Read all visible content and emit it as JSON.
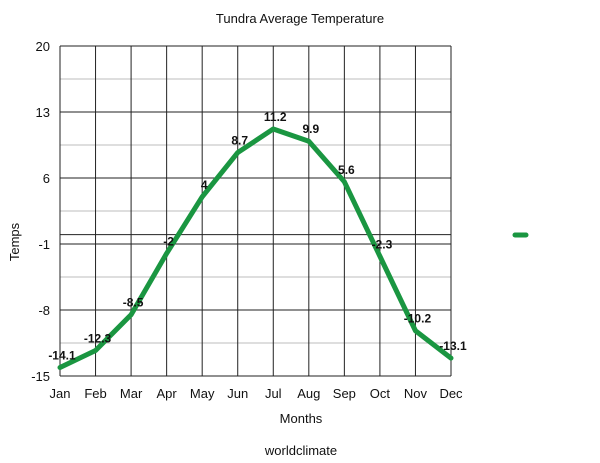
{
  "chart_data": {
    "type": "line",
    "title": "Tundra Average Temperature",
    "xlabel": "Months",
    "ylabel": "Temps",
    "source": "worldclimate",
    "categories": [
      "Jan",
      "Feb",
      "Mar",
      "Apr",
      "May",
      "Jun",
      "Jul",
      "Aug",
      "Sep",
      "Oct",
      "Nov",
      "Dec"
    ],
    "series": [
      {
        "values": [
          -14.1,
          -12.3,
          -8.5,
          -2,
          4,
          8.7,
          11.2,
          9.9,
          5.6,
          -2.3,
          -10.2,
          -13.1
        ],
        "labels": [
          "-14.1",
          "-12.3",
          "-8.5",
          "-2",
          "4",
          "8.7",
          "11.2",
          "9.9",
          "5.6",
          "-2.3",
          "-10.2",
          "-13.1"
        ],
        "color": "#1a9641"
      }
    ],
    "ylim": [
      -15,
      20
    ],
    "yticks": [
      20,
      13,
      6,
      -1,
      -8,
      -15
    ],
    "grid": true,
    "legend": "right"
  }
}
